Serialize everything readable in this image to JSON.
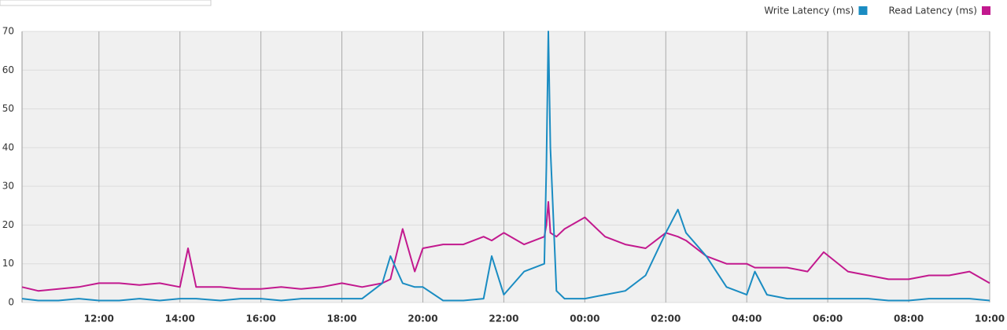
{
  "chart_data": {
    "type": "line",
    "x": [
      10.1,
      10.5,
      11,
      11.5,
      12,
      12.5,
      13,
      13.5,
      14,
      14.2,
      14.4,
      15,
      15.5,
      16,
      16.5,
      17,
      17.5,
      18,
      18.5,
      19,
      19.2,
      19.5,
      19.8,
      20,
      20.5,
      21,
      21.5,
      21.7,
      22,
      22.5,
      23,
      23.05,
      23.1,
      23.15,
      23.3,
      23.5,
      24,
      24.5,
      25,
      25.5,
      26,
      26.3,
      26.5,
      27,
      27.5,
      28,
      28.2,
      28.5,
      29,
      29.5,
      29.9,
      30.5,
      31,
      31.5,
      32,
      32.5,
      33,
      33.5,
      34
    ],
    "series": [
      {
        "name": "Write Latency (ms)",
        "color": "#1a8cc2",
        "values": [
          1,
          0.5,
          0.5,
          1,
          0.5,
          0.5,
          1,
          0.5,
          1,
          1,
          1,
          0.5,
          1,
          1,
          0.5,
          1,
          1,
          1,
          1,
          5,
          12,
          5,
          4,
          4,
          0.5,
          0.5,
          1,
          12,
          2,
          8,
          10,
          35,
          70,
          40,
          3,
          1,
          1,
          2,
          3,
          7,
          18,
          24,
          18,
          12,
          4,
          2,
          8,
          2,
          1,
          1,
          1,
          1,
          1,
          0.5,
          0.5,
          1,
          1,
          1,
          0.5
        ]
      },
      {
        "name": "Read Latency (ms)",
        "color": "#c2198e",
        "values": [
          4,
          3,
          3.5,
          4,
          5,
          5,
          4.5,
          5,
          4,
          14,
          4,
          4,
          3.5,
          3.5,
          4,
          3.5,
          4,
          5,
          4,
          5,
          6,
          19,
          8,
          14,
          15,
          15,
          17,
          16,
          18,
          15,
          17,
          20,
          26,
          18,
          17,
          19,
          22,
          17,
          15,
          14,
          18,
          17,
          16,
          12,
          10,
          10,
          9,
          9,
          9,
          8,
          13,
          8,
          7,
          6,
          6,
          7,
          7,
          8,
          5
        ]
      }
    ],
    "xlim": [
      10.1,
      34
    ],
    "xticks": [
      {
        "value": 12,
        "label": "12:00"
      },
      {
        "value": 14,
        "label": "14:00"
      },
      {
        "value": 16,
        "label": "16:00"
      },
      {
        "value": 18,
        "label": "18:00"
      },
      {
        "value": 20,
        "label": "20:00"
      },
      {
        "value": 22,
        "label": "22:00"
      },
      {
        "value": 24,
        "label": "00:00"
      },
      {
        "value": 26,
        "label": "02:00"
      },
      {
        "value": 28,
        "label": "04:00"
      },
      {
        "value": 30,
        "label": "06:00"
      },
      {
        "value": 32,
        "label": "08:00"
      },
      {
        "value": 34,
        "label": "10:00"
      }
    ],
    "ylim": [
      0,
      70
    ],
    "yticks": [
      0,
      10,
      20,
      30,
      40,
      50,
      60,
      70
    ],
    "grid": true
  }
}
